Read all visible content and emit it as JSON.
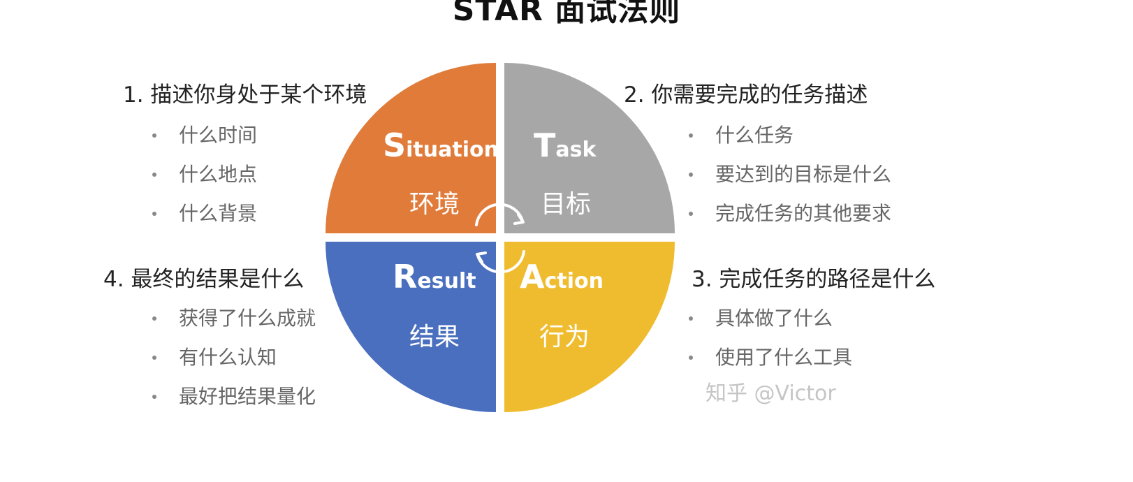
{
  "title": "STAR 面试法则",
  "quadrants": {
    "situation": {
      "letter": "S",
      "rest": "ituation",
      "cn": "环境",
      "color": "#E07B3A"
    },
    "task": {
      "letter": "T",
      "rest": "ask",
      "cn": "目标",
      "color": "#A7A7A7"
    },
    "result": {
      "letter": "R",
      "rest": "esult",
      "cn": "结果",
      "color": "#4A6FBE"
    },
    "action": {
      "letter": "A",
      "rest": "ction",
      "cn": "行为",
      "color": "#F0BC2F"
    }
  },
  "sections": {
    "situation": {
      "heading": "1. 描述你身处于某个环境",
      "items": [
        "什么时间",
        "什么地点",
        "什么背景"
      ]
    },
    "task": {
      "heading": "2. 你需要完成的任务描述",
      "items": [
        "什么任务",
        "要达到的目标是什么",
        "完成任务的其他要求"
      ]
    },
    "action": {
      "heading": "3. 完成任务的路径是什么",
      "items": [
        "具体做了什么",
        "使用了什么工具"
      ]
    },
    "result": {
      "heading": "4. 最终的结果是什么",
      "items": [
        "获得了什么成就",
        "有什么认知",
        "最好把结果量化"
      ]
    }
  },
  "watermark": "知乎 @Victor"
}
